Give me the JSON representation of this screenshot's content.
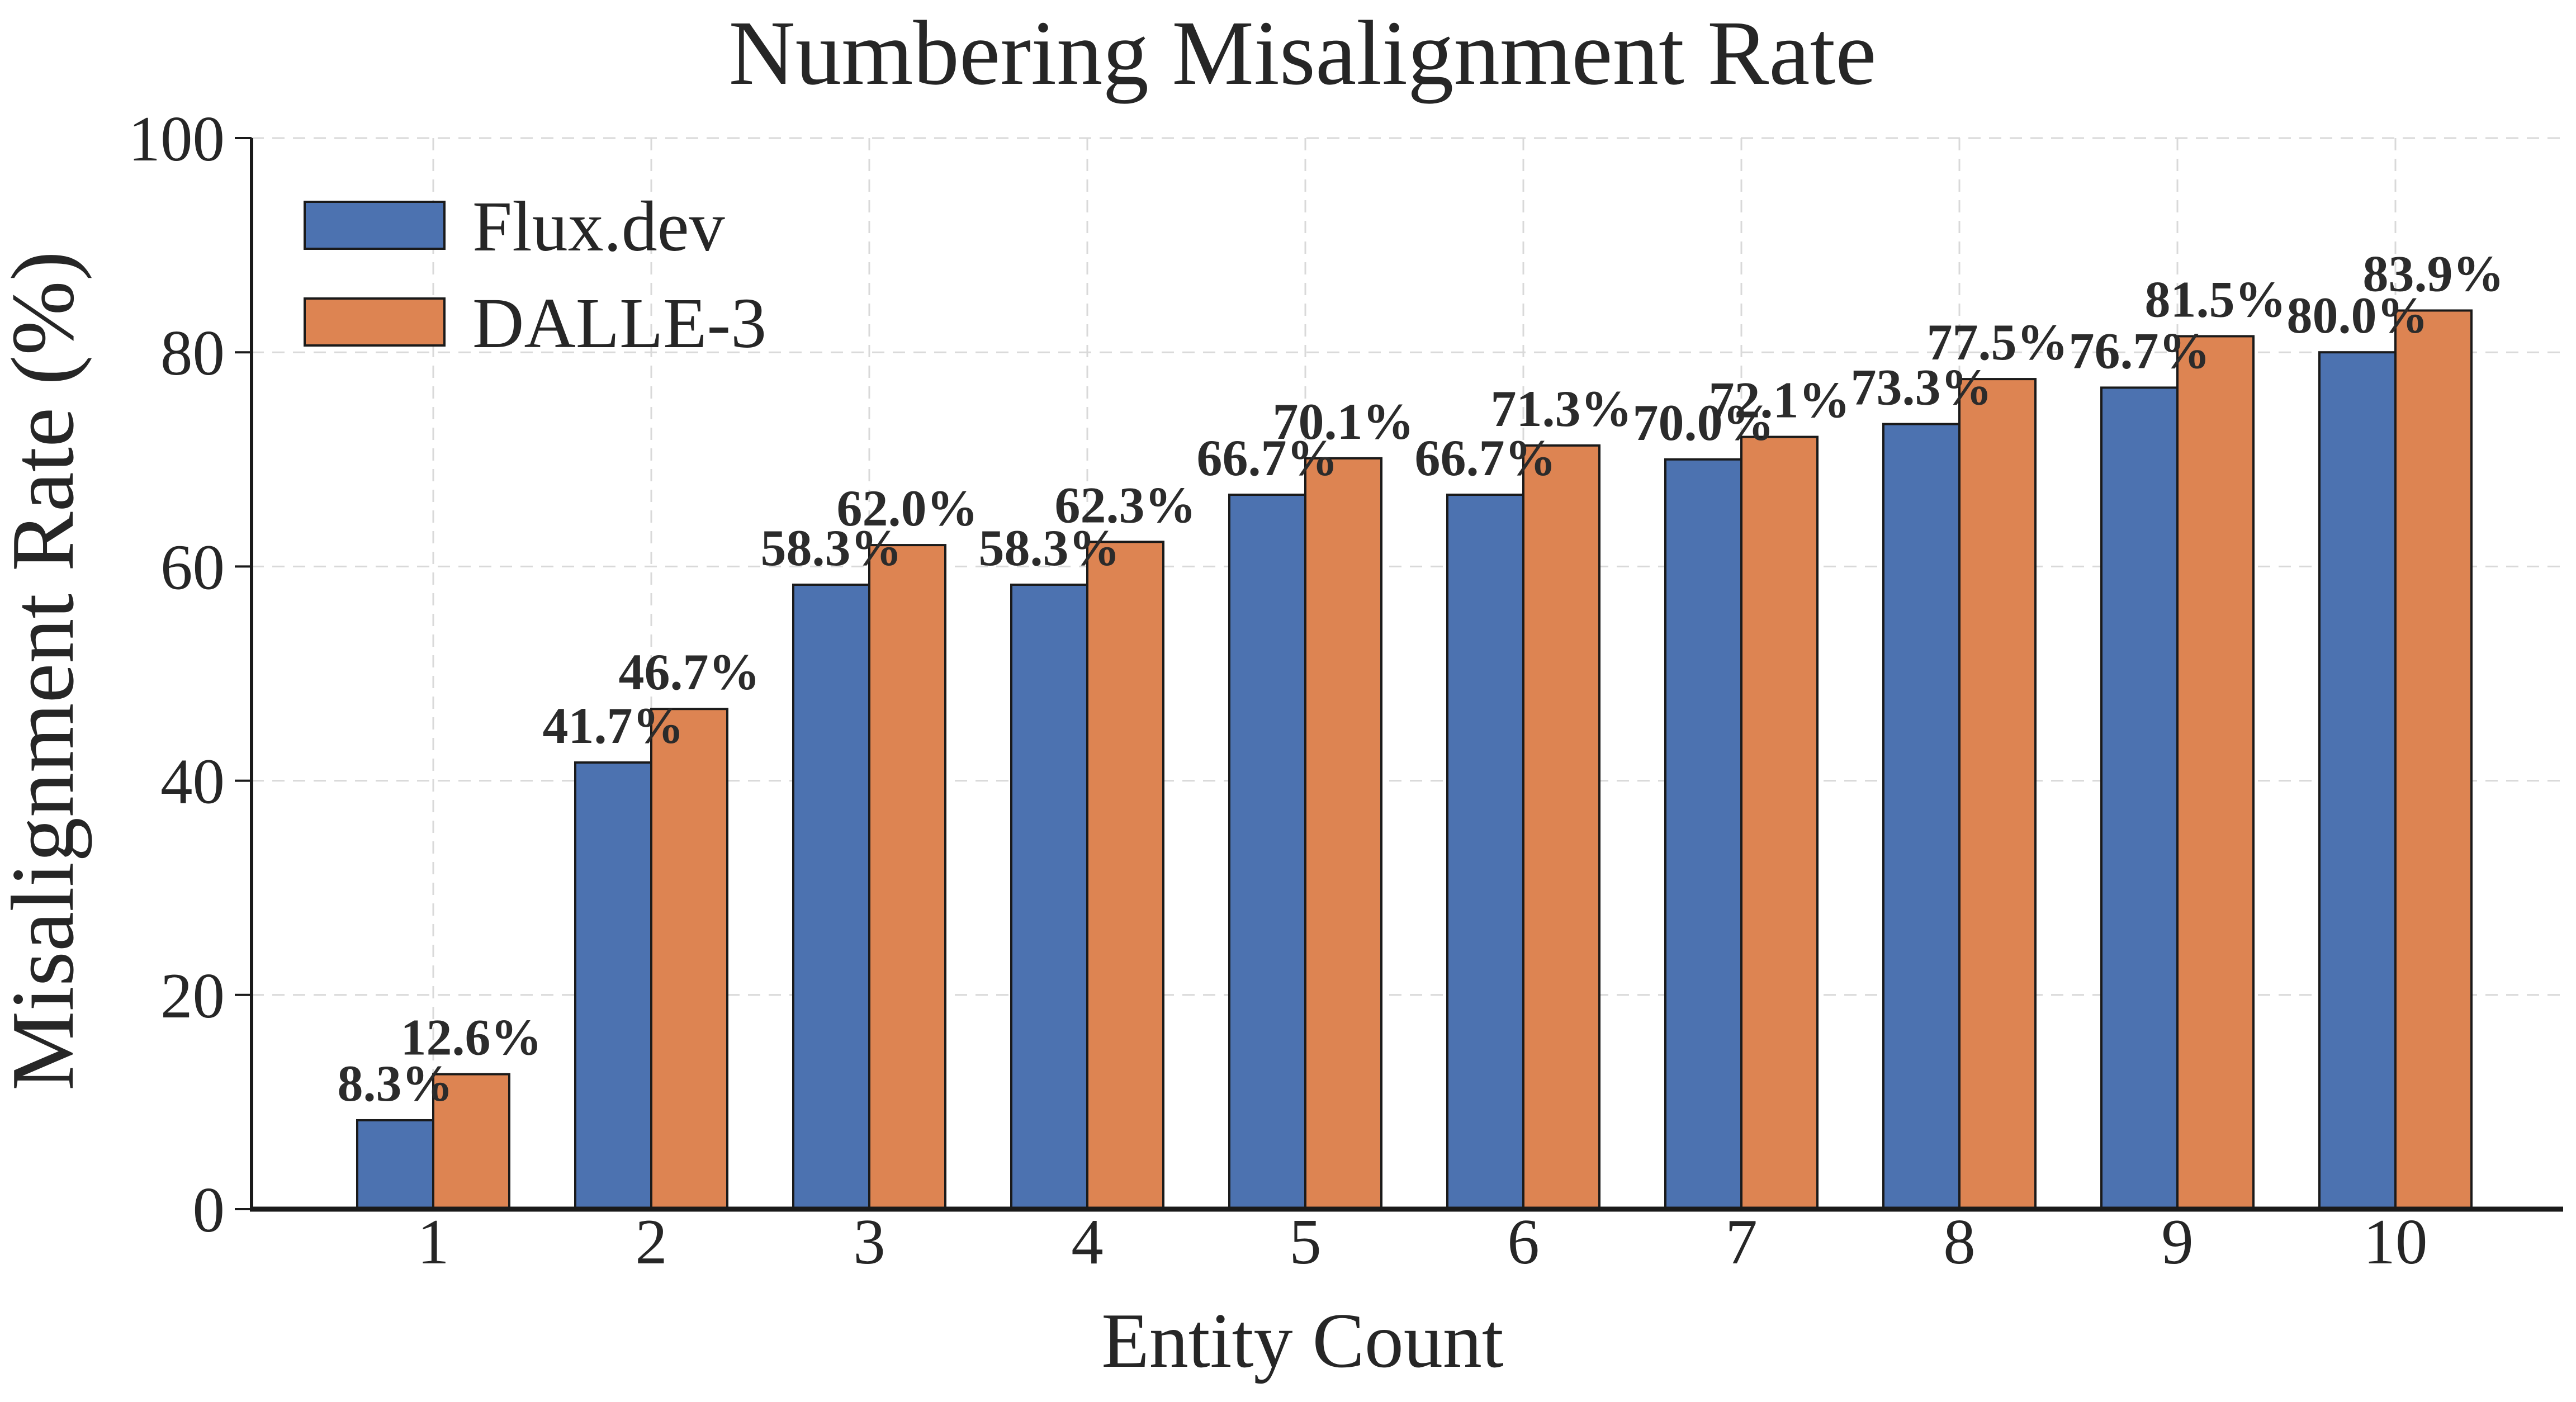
{
  "chart_data": {
    "type": "bar",
    "title": "Numbering Misalignment Rate",
    "xlabel": "Entity Count",
    "ylabel": "Misalignment Rate (%)",
    "categories": [
      "1",
      "2",
      "3",
      "4",
      "5",
      "6",
      "7",
      "8",
      "9",
      "10"
    ],
    "series": [
      {
        "name": "Flux.dev",
        "color": "#4C72B0",
        "values": [
          8.3,
          41.7,
          58.3,
          58.3,
          66.7,
          66.7,
          70.0,
          73.3,
          76.7,
          80.0
        ]
      },
      {
        "name": "DALLE-3",
        "color": "#DD8452",
        "values": [
          12.6,
          46.7,
          62.0,
          62.3,
          70.1,
          71.3,
          72.1,
          77.5,
          81.5,
          83.9
        ]
      }
    ],
    "value_label_suffix": "%",
    "ylim": [
      0,
      100
    ],
    "yticks": [
      0,
      20,
      40,
      60,
      80,
      100
    ],
    "grid": "both-dashed",
    "legend_position": "upper-left",
    "colors": {
      "bar_edge": "#1a1a1a",
      "spine": "#1a1a1a",
      "grid": "#d9d9d9",
      "tick_text": "#262626",
      "data_label_text": "#2b2b2b"
    }
  }
}
